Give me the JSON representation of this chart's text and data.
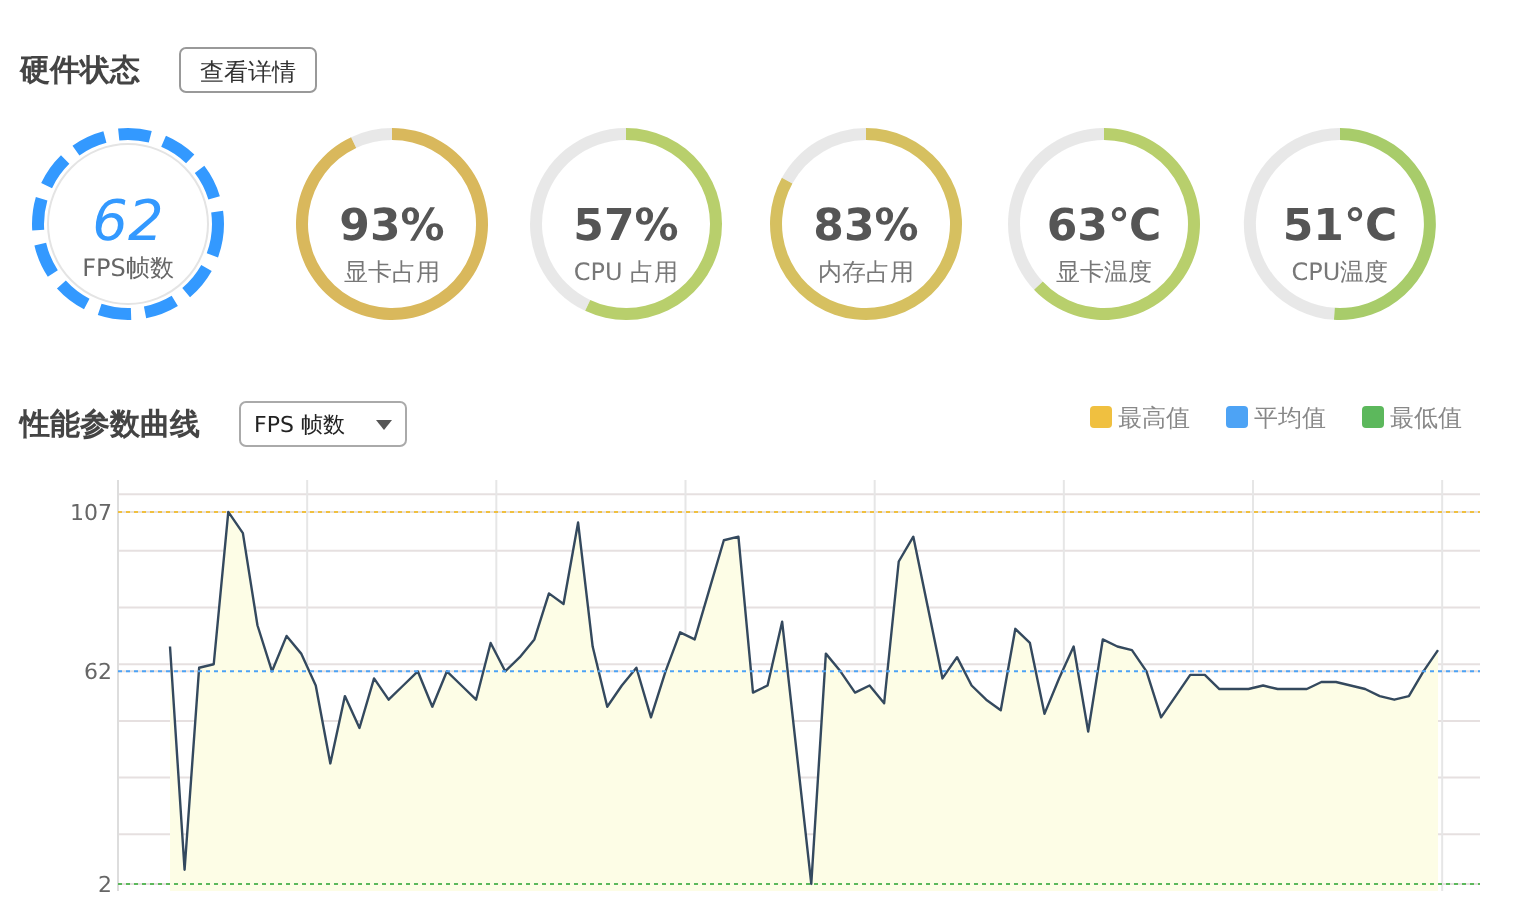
{
  "chart_data": [
    {
      "type": "other",
      "title": "硬件状态",
      "annotations": [
        "查看详情",
        "62",
        "FPS帧数"
      ]
    },
    {
      "type": "donut",
      "title": "显卡占用",
      "categories": [
        null,
        null
      ],
      "values": [
        93,
        7
      ],
      "colors": [
        "#d9b85c",
        "#cccccc"
      ],
      "value_labels": [
        "93%",
        null
      ]
    },
    {
      "type": "donut",
      "title": "CPU 占用",
      "categories": [
        null,
        null
      ],
      "values": [
        57,
        43
      ],
      "colors": [
        "#b8cf6c",
        "#cccccc"
      ],
      "value_labels": [
        "57%",
        null
      ]
    },
    {
      "type": "donut",
      "title": "内存占用",
      "categories": [
        null,
        null
      ],
      "values": [
        83,
        17
      ],
      "colors": [
        "#d6c060",
        "#cccccc"
      ],
      "value_labels": [
        "83%",
        null
      ]
    },
    {
      "type": "donut",
      "title": "显卡温度",
      "categories": [
        null,
        null
      ],
      "values": [
        63,
        37
      ],
      "colors": [
        "#b8cf6c",
        "#cccccc"
      ],
      "value_labels": [
        "63℃",
        null
      ]
    },
    {
      "type": "donut",
      "title": "CPU温度",
      "categories": [
        null,
        null
      ],
      "values": [
        51,
        49
      ],
      "colors": [
        "#a8cc6a",
        "#cccccc"
      ],
      "value_labels": [
        "51℃",
        null
      ]
    },
    {
      "type": "area",
      "title": "性能参数曲线",
      "subtitle": "FPS 帧数",
      "legend": "top right",
      "grid": true,
      "tick_labels": "y",
      "line_style": "solid",
      "categories": [
        null,
        null,
        null,
        null,
        null,
        null,
        null,
        null,
        null,
        null,
        null,
        null,
        null,
        null,
        null,
        null,
        null,
        null,
        null,
        null,
        null,
        null,
        null,
        null,
        null,
        null,
        null,
        null,
        null,
        null,
        null,
        null,
        null,
        null,
        null,
        null,
        null,
        null,
        null,
        null,
        null,
        null,
        null,
        null,
        null,
        null,
        null,
        null,
        null,
        null,
        null,
        null,
        null,
        null,
        null,
        null,
        null,
        null,
        null,
        null,
        null,
        null,
        null,
        null,
        null,
        null,
        null,
        null,
        null,
        null,
        null,
        null,
        null,
        null,
        null,
        null,
        null,
        null,
        null,
        null,
        null,
        null,
        null,
        null,
        null,
        null,
        null,
        null
      ],
      "series": [
        {
          "color": "#34495e",
          "values": [
            69,
            6,
            63,
            64,
            107,
            101,
            75,
            62,
            72,
            67,
            58,
            36,
            55,
            46,
            60,
            54,
            58,
            62,
            52,
            62,
            58,
            54,
            70,
            62,
            66,
            71,
            84,
            81,
            104,
            69,
            52,
            58,
            63,
            49,
            62,
            73,
            71,
            85,
            99,
            100,
            56,
            58,
            76,
            39,
            2,
            67,
            62,
            56,
            58,
            53,
            93,
            100,
            80,
            60,
            66,
            58,
            54,
            51,
            74,
            70,
            50,
            60,
            69,
            45,
            71,
            69,
            68,
            62,
            49,
            55,
            61,
            61,
            57,
            57,
            57,
            58,
            57,
            57,
            57,
            59,
            59,
            58,
            57,
            55,
            54,
            55,
            62,
            68
          ]
        }
      ],
      "ref_lines": [
        {
          "axis": "y",
          "value": 107,
          "label": "最高值",
          "color": "#f0c040",
          "line_style": "dotted"
        },
        {
          "axis": "y",
          "value": 62,
          "label": "平均值",
          "color": "#4da3f5",
          "line_style": "dotted"
        },
        {
          "axis": "y",
          "value": 2,
          "label": "最低值",
          "color": "#5cb85c",
          "line_style": "dotted"
        }
      ],
      "ylim": [
        0,
        116
      ],
      "yticks": [
        2,
        {
          "value": 16,
          "label": null
        },
        {
          "value": 32,
          "label": null
        },
        {
          "value": 48,
          "label": null
        },
        62,
        {
          "value": 64,
          "label": null
        },
        {
          "value": 80,
          "label": null
        },
        {
          "value": 96,
          "label": null
        },
        107,
        {
          "value": 112,
          "label": null
        }
      ]
    }
  ]
}
